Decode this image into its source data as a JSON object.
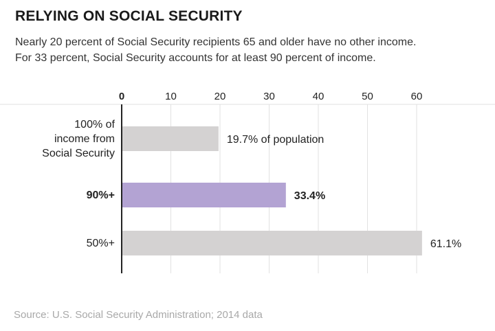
{
  "header": {
    "title": "RELYING ON SOCIAL SECURITY",
    "subtitle_line1": "Nearly 20 percent of Social Security recipients 65 and older have no other income.",
    "subtitle_line2": "For 33 percent, Social Security accounts for at least 90 percent of income."
  },
  "footer": {
    "source": "Source: U.S. Social Security Administration; 2014 data"
  },
  "colors": {
    "bar_default": "#d4d2d2",
    "bar_highlight": "#b3a3d3",
    "gridline": "#e1e1e1",
    "axis": "#222222",
    "text": "#222222",
    "source_text": "#a8a8a8"
  },
  "chart_data": {
    "type": "bar",
    "orientation": "horizontal",
    "title": "RELYING ON SOCIAL SECURITY",
    "xlabel": "",
    "ylabel": "",
    "xlim": [
      0,
      65
    ],
    "xticks": [
      0,
      10,
      20,
      30,
      40,
      50,
      60
    ],
    "grid": true,
    "legend": "none",
    "categories": [
      [
        "100% of",
        "income from",
        "Social Security"
      ],
      [
        "90%+"
      ],
      [
        "50%+"
      ]
    ],
    "values": [
      19.7,
      33.4,
      61.1
    ],
    "value_labels": [
      "19.7% of population",
      "33.4%",
      "61.1%"
    ],
    "highlight_index": 1
  }
}
